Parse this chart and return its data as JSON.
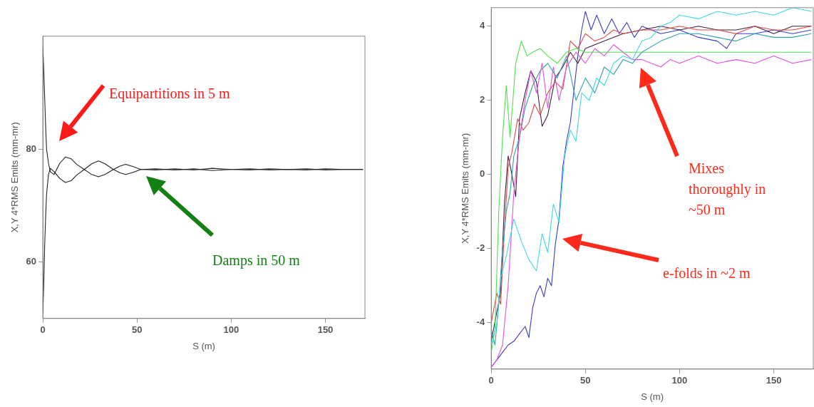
{
  "chart_data": [
    {
      "type": "line",
      "xlabel": "S (m)",
      "ylabel": "X,Y 4*RMS Emits (mm-mr)",
      "xlim": [
        0,
        171
      ],
      "xticks": [
        0,
        50,
        100,
        150
      ],
      "ylim": [
        50,
        100
      ],
      "yticks": [
        60,
        80
      ],
      "marker": "none",
      "annotations": [
        "Equipartitions in 5 m",
        "Damps in 50 m"
      ],
      "series": [
        {
          "color": "#222222",
          "x": [
            0,
            0.5,
            1,
            1.5,
            2,
            3,
            4,
            6,
            9,
            12,
            15,
            18,
            22,
            26,
            29.5,
            33,
            37.5,
            41,
            44,
            48,
            52,
            60,
            70,
            80,
            90,
            100,
            110,
            120,
            130,
            140,
            150,
            160,
            170
          ],
          "values": [
            98,
            94,
            89,
            84,
            80,
            77.5,
            76,
            75.5,
            77.5,
            78.6,
            78.3,
            77.3,
            76.4,
            77.4,
            77.9,
            77.4,
            76.4,
            77,
            77.3,
            76.9,
            76.4,
            76.3,
            76.5,
            76.3,
            76.6,
            76.4,
            76.3,
            76.5,
            76.4,
            76.5,
            76.3,
            76.4,
            76.4
          ]
        },
        {
          "color": "#222222",
          "x": [
            0,
            0.5,
            1,
            1.5,
            2,
            3,
            4,
            6,
            9,
            12,
            15,
            18,
            22,
            26,
            29.5,
            33,
            37.5,
            41,
            44,
            48,
            52,
            60,
            70,
            80,
            90,
            100,
            110,
            120,
            130,
            140,
            150,
            160,
            170
          ],
          "values": [
            51,
            56,
            63,
            68,
            72,
            75.5,
            76.6,
            76,
            74.8,
            74.1,
            74.4,
            75.4,
            76.4,
            75.5,
            75.1,
            75.5,
            76.4,
            75.8,
            75.5,
            75.9,
            76.4,
            76.5,
            76.3,
            76.5,
            76.2,
            76.4,
            76.5,
            76.3,
            76.4,
            76.3,
            76.5,
            76.4,
            76.4
          ]
        }
      ]
    },
    {
      "type": "line",
      "xlabel": "S (m)",
      "ylabel": "X,Y 4*RMS Emits (mm-mr)",
      "xlim": [
        0,
        171
      ],
      "xticks": [
        0,
        50,
        100,
        150
      ],
      "ylim": [
        -5.25,
        4.5
      ],
      "yticks": [
        -4,
        -2,
        0,
        2,
        4
      ],
      "marker": "none",
      "annotations": [
        "Mixes thoroughly in ~50 m",
        "e-folds in ~2 m"
      ],
      "series": [
        {
          "color": "#40d8e0",
          "x": [
            0,
            3,
            5,
            8,
            12,
            16,
            20,
            24,
            27,
            30,
            33,
            36,
            39,
            42,
            45,
            48,
            52,
            56,
            60,
            65,
            70,
            75,
            80,
            85,
            90,
            95,
            100,
            110,
            120,
            130,
            140,
            150,
            160,
            170
          ],
          "values": [
            -4.6,
            -4.0,
            -2.8,
            -2.2,
            -1.2,
            -1.8,
            -2.3,
            -2.6,
            -1.6,
            -2.1,
            -0.8,
            -1.3,
            0.5,
            1.2,
            0.9,
            2.2,
            2.0,
            2.6,
            2.4,
            3.0,
            3.2,
            3.1,
            3.6,
            3.7,
            4.0,
            4.1,
            4.3,
            4.2,
            4.4,
            4.3,
            4.4,
            4.3,
            4.5,
            4.4
          ]
        },
        {
          "color": "#50e050",
          "x": [
            0,
            2,
            4,
            6,
            8,
            10,
            13,
            16,
            19,
            22,
            26,
            30,
            35,
            40,
            45,
            50,
            60,
            70,
            80,
            90,
            100,
            120,
            140,
            160,
            170
          ],
          "values": [
            -4.8,
            -4.2,
            -1.0,
            1.0,
            2.4,
            1.0,
            3.0,
            3.6,
            3.2,
            3.3,
            3.4,
            3.2,
            3.0,
            3.3,
            3.4,
            3.3,
            3.3,
            3.3,
            3.3,
            3.3,
            3.3,
            3.3,
            3.3,
            3.3,
            3.3
          ]
        },
        {
          "color": "#e050e0",
          "x": [
            0,
            3,
            6,
            9,
            12,
            15,
            18,
            21,
            24,
            27,
            30,
            33,
            36,
            40,
            45,
            50,
            55,
            60,
            65,
            70,
            75,
            80,
            85,
            90,
            95,
            100,
            110,
            120,
            130,
            140,
            150,
            160,
            170
          ],
          "values": [
            -5.2,
            -5.0,
            -4.6,
            -3.0,
            -0.5,
            1.0,
            2.0,
            2.8,
            2.2,
            3.0,
            1.8,
            2.9,
            2.0,
            2.9,
            3.3,
            3.0,
            3.4,
            3.2,
            3.5,
            3.3,
            3.1,
            3.1,
            3.0,
            2.9,
            3.1,
            3.0,
            3.2,
            3.0,
            3.1,
            3.0,
            3.2,
            3.0,
            3.1
          ]
        },
        {
          "color": "#30a0b0",
          "x": [
            0,
            2,
            4,
            6,
            8,
            10,
            12,
            15,
            18,
            22,
            26,
            30,
            35,
            40,
            45,
            50,
            55,
            60,
            65,
            70,
            75,
            80,
            90,
            100,
            110,
            120,
            130,
            140,
            150,
            160,
            170
          ],
          "values": [
            -4.2,
            -4.6,
            -3.5,
            -2.0,
            -1.0,
            -0.5,
            0.5,
            1.0,
            1.8,
            2.4,
            2.8,
            3.0,
            2.6,
            3.2,
            2.0,
            2.6,
            2.2,
            2.9,
            2.7,
            3.1,
            3.0,
            3.3,
            3.6,
            3.8,
            3.8,
            3.7,
            3.6,
            3.8,
            3.7,
            3.7,
            3.8
          ]
        },
        {
          "color": "#e04848",
          "x": [
            0,
            3,
            5,
            7,
            9,
            11,
            14,
            17,
            20,
            23,
            26,
            30,
            34,
            38,
            42,
            46,
            50,
            55,
            60,
            65,
            70,
            80,
            90,
            100,
            110,
            120,
            130,
            140,
            150,
            160,
            170
          ],
          "values": [
            -4.0,
            -3.2,
            -3.5,
            -1.5,
            0.2,
            0.6,
            1.5,
            1.2,
            1.4,
            1.9,
            1.6,
            2.2,
            2.5,
            2.3,
            3.6,
            3.4,
            3.8,
            3.6,
            3.7,
            3.9,
            3.8,
            3.9,
            3.9,
            4.0,
            3.9,
            3.9,
            3.8,
            4.0,
            3.9,
            3.9,
            4.0
          ]
        },
        {
          "color": "#402040",
          "x": [
            0,
            3,
            5,
            7,
            9,
            11,
            13,
            15,
            18,
            21,
            24,
            27,
            30,
            34,
            38,
            42,
            46,
            50,
            55,
            60,
            70,
            80,
            90,
            100,
            110,
            120,
            130,
            140,
            150,
            160,
            170
          ],
          "values": [
            -4.5,
            -3.7,
            -3.2,
            -0.8,
            0.5,
            0.0,
            -0.6,
            1.5,
            2.2,
            2.8,
            2.5,
            1.3,
            1.6,
            2.6,
            2.9,
            3.3,
            3.0,
            3.4,
            3.5,
            3.6,
            3.8,
            3.9,
            4.0,
            3.9,
            4.0,
            3.9,
            3.9,
            4.0,
            3.8,
            4.0,
            4.0
          ]
        },
        {
          "color": "#3c3cc8",
          "x": [
            0,
            3,
            6,
            9,
            12,
            15,
            18,
            20,
            22,
            24,
            26,
            28,
            30,
            32,
            34,
            36,
            38,
            40,
            42,
            44,
            46,
            48,
            50,
            53,
            56,
            60,
            64,
            68,
            72,
            76,
            80,
            90,
            100,
            110,
            120,
            125,
            130,
            140,
            150,
            160,
            170
          ],
          "values": [
            -5.2,
            -5.0,
            -4.8,
            -4.6,
            -4.5,
            -4.3,
            -4.1,
            -4.4,
            -3.6,
            -3.2,
            -3.0,
            -3.3,
            -2.8,
            -3.0,
            -1.9,
            -1.2,
            0.2,
            0.9,
            1.4,
            2.3,
            3.2,
            3.9,
            4.4,
            3.9,
            4.3,
            3.8,
            4.2,
            3.8,
            4.1,
            3.7,
            4.0,
            3.8,
            3.9,
            3.7,
            3.6,
            3.4,
            3.8,
            3.8,
            3.9,
            3.8,
            3.9
          ]
        }
      ]
    }
  ]
}
